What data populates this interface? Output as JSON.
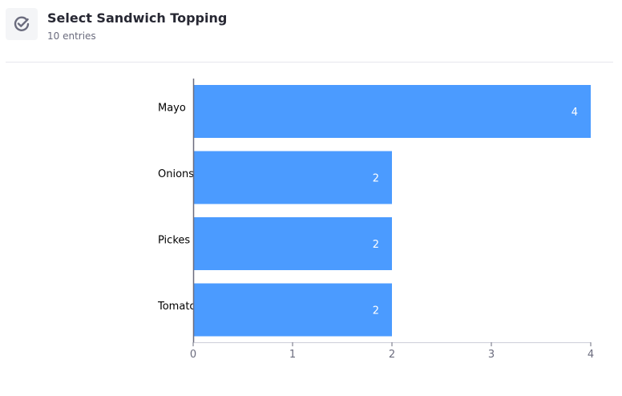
{
  "header": {
    "title": "Select Sandwich Topping",
    "subtitle": "10 entries",
    "icon": "check-circle-icon"
  },
  "colors": {
    "bar": "#4b9bff",
    "axis": "#6b6c7e",
    "baseline": "#cdced9"
  },
  "chart_data": {
    "type": "bar",
    "orientation": "horizontal",
    "categories": [
      "Mayo",
      "Onions",
      "Pickes",
      "Tomato"
    ],
    "values": [
      4,
      2,
      2,
      2
    ],
    "xlim": [
      0,
      4
    ],
    "xticks": [
      0,
      1,
      2,
      3,
      4
    ],
    "title": "",
    "xlabel": "",
    "ylabel": "",
    "grid": false
  }
}
